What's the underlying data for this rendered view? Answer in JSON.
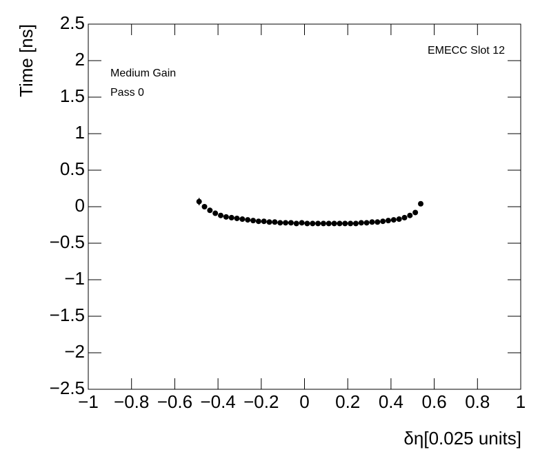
{
  "chart_data": {
    "type": "scatter",
    "x_label": "δη[0.025 units]",
    "y_label": "Time [ns]",
    "annotations": [
      "EMECC Slot 12",
      "Medium Gain",
      "Pass 0"
    ],
    "color": "#000000",
    "xlim": [
      -1,
      1
    ],
    "ylim": [
      -2.5,
      2.5
    ],
    "xticks": [
      {
        "value": -1,
        "label": "−1"
      },
      {
        "value": -0.8,
        "label": "−0.8"
      },
      {
        "value": -0.6,
        "label": "−0.6"
      },
      {
        "value": -0.4,
        "label": "−0.4"
      },
      {
        "value": -0.2,
        "label": "−0.2"
      },
      0,
      0.2,
      0.4,
      0.6,
      0.8,
      1
    ],
    "yticks": [
      {
        "value": -2.5,
        "label": "−2.5"
      },
      {
        "value": -2,
        "label": "−2"
      },
      {
        "value": -1.5,
        "label": "−1.5"
      },
      {
        "value": -1,
        "label": "−1"
      },
      {
        "value": -0.5,
        "label": "−0.5"
      },
      0,
      0.5,
      1,
      1.5,
      2,
      2.5
    ],
    "x": [
      -0.4875,
      -0.4625,
      -0.4375,
      -0.4125,
      -0.3875,
      -0.3625,
      -0.3375,
      -0.3125,
      -0.2875,
      -0.2625,
      -0.2375,
      -0.2125,
      -0.1875,
      -0.1625,
      -0.1375,
      -0.1125,
      -0.0875,
      -0.0625,
      -0.0375,
      -0.0125,
      0.0125,
      0.0375,
      0.0625,
      0.0875,
      0.1125,
      0.1375,
      0.1625,
      0.1875,
      0.2125,
      0.2375,
      0.2625,
      0.2875,
      0.3125,
      0.3375,
      0.3625,
      0.3875,
      0.4125,
      0.4375,
      0.4625,
      0.4875,
      0.5125,
      0.5375
    ],
    "values": [
      0.07,
      0.0,
      -0.05,
      -0.09,
      -0.12,
      -0.14,
      -0.15,
      -0.16,
      -0.17,
      -0.18,
      -0.19,
      -0.2,
      -0.2,
      -0.21,
      -0.21,
      -0.22,
      -0.22,
      -0.22,
      -0.23,
      -0.22,
      -0.23,
      -0.23,
      -0.23,
      -0.23,
      -0.23,
      -0.23,
      -0.23,
      -0.23,
      -0.23,
      -0.23,
      -0.22,
      -0.22,
      -0.21,
      -0.21,
      -0.2,
      -0.19,
      -0.18,
      -0.17,
      -0.15,
      -0.12,
      -0.08,
      0.04
    ],
    "errors": [
      0.05,
      0.02,
      0.01,
      0.01,
      0.01,
      0.01,
      0.01,
      0.01,
      0.01,
      0.01,
      0.01,
      0.01,
      0.01,
      0.01,
      0.01,
      0.01,
      0.01,
      0.01,
      0.01,
      0.01,
      0.01,
      0.01,
      0.01,
      0.01,
      0.01,
      0.01,
      0.01,
      0.01,
      0.01,
      0.01,
      0.01,
      0.01,
      0.01,
      0.01,
      0.01,
      0.01,
      0.01,
      0.01,
      0.01,
      0.01,
      0.02,
      0.02
    ]
  }
}
